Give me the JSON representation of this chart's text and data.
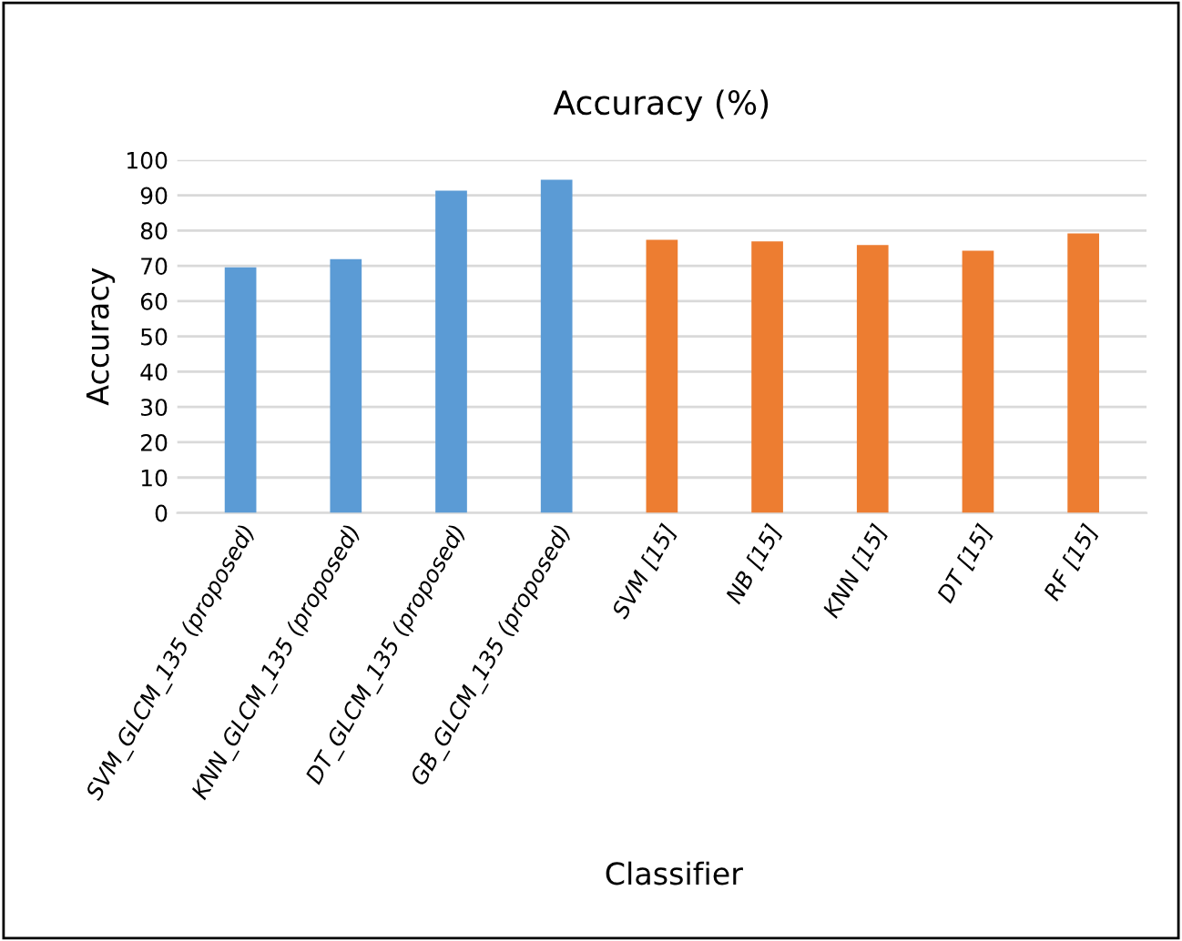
{
  "chart_data": {
    "type": "bar",
    "title": "Accuracy (%)",
    "xlabel": "Classifier",
    "ylabel": "Accuracy",
    "categories": [
      "SVM_GLCM_135 (proposed)",
      "KNN_GLCM_135 (proposed)",
      "DT_GLCM_135 (proposed)",
      "GB_GLCM_135 (proposed)",
      "SVM [15]",
      "NB [15]",
      "KNN [15]",
      "DT [15]",
      "RF [15]"
    ],
    "values": [
      69.6,
      71.9,
      91.3,
      94.4,
      77.4,
      76.9,
      75.9,
      74.3,
      79.2
    ],
    "colors": [
      "#5b9bd5",
      "#5b9bd5",
      "#5b9bd5",
      "#5b9bd5",
      "#ed7d31",
      "#ed7d31",
      "#ed7d31",
      "#ed7d31",
      "#ed7d31"
    ],
    "ylim": [
      0,
      100
    ],
    "yticks": [
      0,
      10,
      20,
      30,
      40,
      50,
      60,
      70,
      80,
      90,
      100
    ],
    "grid": "y"
  }
}
